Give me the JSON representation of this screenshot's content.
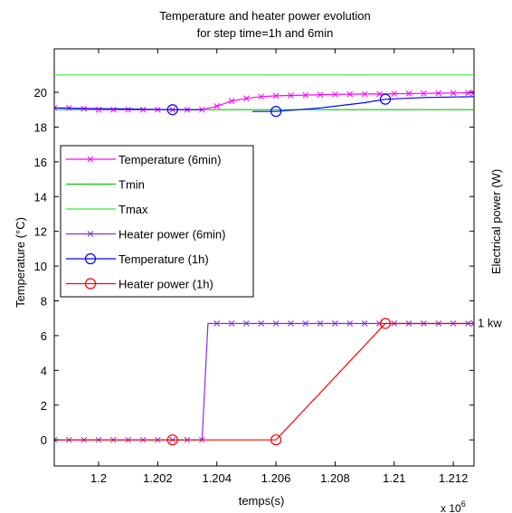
{
  "chart_data": {
    "type": "line",
    "title": [
      "Temperature and heater power evolution",
      "for step time=1h and 6min"
    ],
    "xlabel": "temps(s)",
    "ylabel": "Temperature (°C)",
    "y2label": "Electrical power (W)",
    "x_exponent_label": "x 10",
    "x_exponent_sup": "6",
    "xlim": [
      1.1985,
      1.2127
    ],
    "ylim": [
      -1.5,
      22.5
    ],
    "xticks": [
      1.2,
      1.202,
      1.204,
      1.206,
      1.208,
      1.21,
      1.212
    ],
    "xtick_labels": [
      "1.2",
      "1.202",
      "1.204",
      "1.206",
      "1.208",
      "1.21",
      "1.212"
    ],
    "yticks": [
      0,
      2,
      4,
      6,
      8,
      10,
      12,
      14,
      16,
      18,
      20
    ],
    "ytick_labels": [
      "0",
      "2",
      "4",
      "6",
      "8",
      "10",
      "12",
      "14",
      "16",
      "18",
      "20"
    ],
    "annotation": {
      "text": "1 kw",
      "y": 6.7
    },
    "legend_position": "middle-left",
    "grid": false,
    "series": [
      {
        "name": "Temperature (6min)",
        "color": "#ff00ff",
        "marker": "x",
        "x": [
          1.1985,
          1.199,
          1.1995,
          1.2,
          1.2005,
          1.201,
          1.2015,
          1.202,
          1.2025,
          1.203,
          1.2035,
          1.204,
          1.2045,
          1.205,
          1.2055,
          1.206,
          1.2065,
          1.207,
          1.2075,
          1.208,
          1.2085,
          1.209,
          1.2095,
          1.21,
          1.2105,
          1.211,
          1.2115,
          1.212,
          1.2125,
          1.2127
        ],
        "y": [
          19.1,
          19.1,
          19.05,
          19.0,
          19.0,
          19.0,
          19.0,
          19.0,
          19.0,
          19.0,
          19.0,
          19.2,
          19.5,
          19.65,
          19.75,
          19.8,
          19.82,
          19.84,
          19.86,
          19.88,
          19.89,
          19.9,
          19.9,
          19.92,
          19.93,
          19.94,
          19.95,
          19.96,
          19.97,
          19.97
        ]
      },
      {
        "name": "Tmin",
        "color": "#00cc00",
        "marker": "none",
        "x": [
          1.1985,
          1.2127
        ],
        "y": [
          19.0,
          19.0
        ]
      },
      {
        "name": "Tmax",
        "color": "#33ee33",
        "marker": "none",
        "x": [
          1.1985,
          1.2127
        ],
        "y": [
          21.0,
          21.0
        ]
      },
      {
        "name": "Heater power (6min)",
        "color": "#8a2be2",
        "marker": "x",
        "x": [
          1.1985,
          1.199,
          1.1995,
          1.2,
          1.2005,
          1.201,
          1.2015,
          1.202,
          1.2025,
          1.203,
          1.2035,
          1.204,
          1.2045,
          1.205,
          1.2055,
          1.206,
          1.2065,
          1.207,
          1.2075,
          1.208,
          1.2085,
          1.209,
          1.2095,
          1.21,
          1.2105,
          1.211,
          1.2115,
          1.212,
          1.2125,
          1.2127
        ],
        "y": [
          0,
          0,
          0,
          0,
          0,
          0,
          0,
          0,
          0,
          0,
          0,
          6.7,
          6.7,
          6.7,
          6.7,
          6.7,
          6.7,
          6.7,
          6.7,
          6.7,
          6.7,
          6.7,
          6.7,
          6.7,
          6.7,
          6.7,
          6.7,
          6.7,
          6.7,
          6.7
        ],
        "draw_x": [
          1.1985,
          1.2035,
          1.2037,
          1.2127
        ],
        "draw_y": [
          0,
          0,
          6.7,
          6.7
        ]
      },
      {
        "name": "Temperature (1h)",
        "color": "#0000ff",
        "marker": "o",
        "x": [
          1.1985,
          1.2025,
          1.206,
          1.2097,
          1.2127
        ],
        "y": [
          19.1,
          19.0,
          18.9,
          19.6,
          19.75
        ],
        "segments": [
          {
            "x": [
              1.1985,
              1.2025,
              1.2035
            ],
            "y": [
              19.1,
              19.0,
              19.0
            ]
          },
          {
            "x": [
              1.2052,
              1.206,
              1.2075,
              1.209,
              1.2097,
              1.211,
              1.2127
            ],
            "y": [
              18.9,
              18.9,
              19.1,
              19.4,
              19.6,
              19.7,
              19.75
            ]
          }
        ],
        "marker_x": [
          1.2025,
          1.206,
          1.2097
        ],
        "marker_y": [
          19.0,
          18.9,
          19.6
        ]
      },
      {
        "name": "Heater power (1h)",
        "color": "#ff0000",
        "marker": "o",
        "x": [
          1.1985,
          1.2025,
          1.206,
          1.2097,
          1.2127
        ],
        "y": [
          0,
          0,
          0,
          6.7,
          6.7
        ],
        "marker_x": [
          1.2025,
          1.206,
          1.2097
        ],
        "marker_y": [
          0,
          0,
          6.7
        ]
      }
    ]
  }
}
